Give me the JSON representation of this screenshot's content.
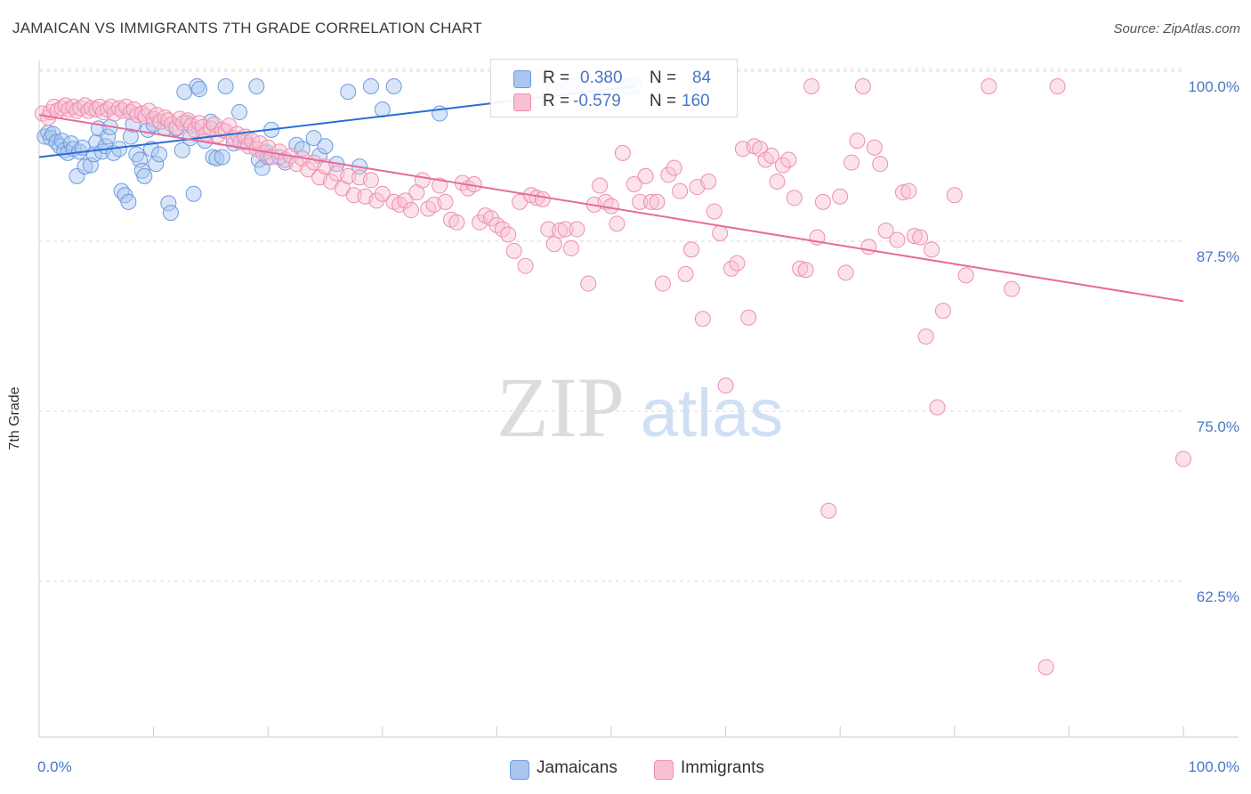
{
  "header": {
    "title": "JAMAICAN VS IMMIGRANTS 7TH GRADE CORRELATION CHART",
    "source": "Source: ZipAtlas.com"
  },
  "watermark": {
    "zip": "ZIP",
    "atlas": "atlas"
  },
  "legend": {
    "rows": [
      {
        "r_label": "R =",
        "r_value": "0.380",
        "n_label": "N =",
        "n_value": "84",
        "color": "#a9c5f0",
        "border": "#6d9be0"
      },
      {
        "r_label": "R =",
        "r_value": "-0.579",
        "n_label": "N =",
        "n_value": "160",
        "color": "#f9c0d3",
        "border": "#ec8fae"
      }
    ]
  },
  "bottom_legend": [
    {
      "label": "Jamaicans",
      "color": "#a9c5f0",
      "border": "#6d9be0"
    },
    {
      "label": "Immigrants",
      "color": "#f9c0d3",
      "border": "#ec8fae"
    }
  ],
  "colors": {
    "blue_line": "#2b6dd6",
    "pink_line": "#e86b97",
    "axis_text": "#4a77c7",
    "grid": "#d9d9d9"
  },
  "chart_data": {
    "type": "scatter",
    "title": "JAMAICAN VS IMMIGRANTS 7TH GRADE CORRELATION CHART",
    "xlabel": "",
    "ylabel": "7th Grade",
    "xlim": [
      0,
      100
    ],
    "ylim": [
      51,
      101.5
    ],
    "x_tick_labels": [
      "0.0%",
      "100.0%"
    ],
    "y_ticks": [
      62.5,
      75.0,
      87.5,
      100.0
    ],
    "y_tick_labels": [
      "62.5%",
      "75.0%",
      "87.5%",
      "100.0%"
    ],
    "grid": true,
    "legend_position": "top-center",
    "series": [
      {
        "name": "Jamaicans",
        "color": "#6d9be0",
        "trend": {
          "x": [
            0,
            52
          ],
          "y": [
            94.8,
            100.0
          ]
        },
        "points": [
          [
            0.5,
            96.3
          ],
          [
            0.8,
            96.6
          ],
          [
            1.0,
            96.2
          ],
          [
            1.2,
            96.5
          ],
          [
            1.5,
            95.9
          ],
          [
            1.8,
            95.6
          ],
          [
            2.0,
            96.0
          ],
          [
            2.2,
            95.3
          ],
          [
            2.5,
            95.1
          ],
          [
            2.8,
            95.8
          ],
          [
            3.0,
            95.4
          ],
          [
            3.3,
            93.4
          ],
          [
            3.5,
            95.2
          ],
          [
            3.8,
            95.5
          ],
          [
            4.0,
            94.1
          ],
          [
            4.5,
            94.2
          ],
          [
            4.8,
            95.0
          ],
          [
            5.0,
            95.9
          ],
          [
            5.2,
            96.9
          ],
          [
            5.5,
            95.2
          ],
          [
            5.8,
            95.6
          ],
          [
            6.0,
            96.3
          ],
          [
            6.2,
            97.0
          ],
          [
            6.5,
            95.1
          ],
          [
            7.0,
            95.4
          ],
          [
            7.2,
            92.3
          ],
          [
            7.5,
            92.0
          ],
          [
            7.8,
            91.5
          ],
          [
            8.0,
            96.3
          ],
          [
            8.2,
            97.2
          ],
          [
            8.5,
            95.0
          ],
          [
            8.8,
            94.6
          ],
          [
            9.0,
            93.8
          ],
          [
            9.2,
            93.4
          ],
          [
            9.5,
            96.8
          ],
          [
            9.8,
            95.4
          ],
          [
            10.0,
            97.2
          ],
          [
            10.2,
            94.3
          ],
          [
            10.5,
            95.0
          ],
          [
            11.0,
            96.9
          ],
          [
            11.3,
            91.4
          ],
          [
            11.5,
            90.7
          ],
          [
            12.0,
            96.9
          ],
          [
            12.5,
            95.3
          ],
          [
            12.7,
            99.6
          ],
          [
            13.0,
            97.3
          ],
          [
            13.2,
            96.2
          ],
          [
            13.5,
            92.1
          ],
          [
            13.8,
            100.0
          ],
          [
            14.0,
            99.8
          ],
          [
            14.5,
            96.0
          ],
          [
            15.0,
            97.4
          ],
          [
            15.2,
            94.8
          ],
          [
            15.5,
            94.7
          ],
          [
            16.0,
            94.8
          ],
          [
            16.3,
            100.0
          ],
          [
            17.0,
            95.8
          ],
          [
            17.5,
            98.1
          ],
          [
            18.0,
            95.9
          ],
          [
            19.0,
            100.0
          ],
          [
            19.2,
            94.6
          ],
          [
            19.5,
            94.0
          ],
          [
            19.8,
            95.2
          ],
          [
            20.0,
            94.8
          ],
          [
            20.3,
            96.8
          ],
          [
            21.0,
            94.8
          ],
          [
            21.5,
            94.4
          ],
          [
            22.5,
            95.7
          ],
          [
            23.0,
            95.4
          ],
          [
            24.0,
            96.2
          ],
          [
            24.5,
            94.9
          ],
          [
            25.0,
            95.6
          ],
          [
            26.0,
            94.3
          ],
          [
            27.0,
            99.6
          ],
          [
            28.0,
            94.1
          ],
          [
            29.0,
            100.0
          ],
          [
            30.0,
            98.3
          ],
          [
            31.0,
            100.0
          ],
          [
            35.0,
            98.0
          ],
          [
            45.0,
            99.8
          ],
          [
            46.5,
            100.0
          ],
          [
            49.0,
            99.0
          ],
          [
            51.5,
            100.0
          ],
          [
            52.0,
            100.0
          ]
        ]
      },
      {
        "name": "Immigrants",
        "color": "#ec8fae",
        "trend": {
          "x": [
            0,
            100
          ],
          "y": [
            97.9,
            84.2
          ]
        },
        "points": [
          [
            0.3,
            98.0
          ],
          [
            0.8,
            97.7
          ],
          [
            1.0,
            98.1
          ],
          [
            1.3,
            98.5
          ],
          [
            1.6,
            98.2
          ],
          [
            2.0,
            98.4
          ],
          [
            2.3,
            98.6
          ],
          [
            2.6,
            98.3
          ],
          [
            3.0,
            98.5
          ],
          [
            3.3,
            98.2
          ],
          [
            3.6,
            98.4
          ],
          [
            4.0,
            98.6
          ],
          [
            4.3,
            98.2
          ],
          [
            4.6,
            98.4
          ],
          [
            5.0,
            98.3
          ],
          [
            5.3,
            98.5
          ],
          [
            5.6,
            98.1
          ],
          [
            6.0,
            98.3
          ],
          [
            6.3,
            98.5
          ],
          [
            6.6,
            98.0
          ],
          [
            7.0,
            98.4
          ],
          [
            7.3,
            98.2
          ],
          [
            7.6,
            98.5
          ],
          [
            8.0,
            98.1
          ],
          [
            8.3,
            98.3
          ],
          [
            8.6,
            97.9
          ],
          [
            9.0,
            98.0
          ],
          [
            9.3,
            97.8
          ],
          [
            9.6,
            98.2
          ],
          [
            10.0,
            97.6
          ],
          [
            10.3,
            97.9
          ],
          [
            10.6,
            97.4
          ],
          [
            11.0,
            97.7
          ],
          [
            11.3,
            97.5
          ],
          [
            11.6,
            97.2
          ],
          [
            12.0,
            97.0
          ],
          [
            12.3,
            97.6
          ],
          [
            12.6,
            97.3
          ],
          [
            13.0,
            97.5
          ],
          [
            13.3,
            97.1
          ],
          [
            13.6,
            96.8
          ],
          [
            14.0,
            97.3
          ],
          [
            14.3,
            97.0
          ],
          [
            14.6,
            96.5
          ],
          [
            15.0,
            96.9
          ],
          [
            15.3,
            97.2
          ],
          [
            15.6,
            96.4
          ],
          [
            16.0,
            96.8
          ],
          [
            16.3,
            96.7
          ],
          [
            16.6,
            97.1
          ],
          [
            17.0,
            96.2
          ],
          [
            17.3,
            96.5
          ],
          [
            17.6,
            95.9
          ],
          [
            18.0,
            96.3
          ],
          [
            18.3,
            95.6
          ],
          [
            18.6,
            96.0
          ],
          [
            19.0,
            95.4
          ],
          [
            19.3,
            95.8
          ],
          [
            19.6,
            95.1
          ],
          [
            20.0,
            95.5
          ],
          [
            20.3,
            94.8
          ],
          [
            21.0,
            95.2
          ],
          [
            21.5,
            94.6
          ],
          [
            22.0,
            94.9
          ],
          [
            22.5,
            94.3
          ],
          [
            23.0,
            94.7
          ],
          [
            23.5,
            93.9
          ],
          [
            24.0,
            94.4
          ],
          [
            24.5,
            93.3
          ],
          [
            25.0,
            94.1
          ],
          [
            25.5,
            93.0
          ],
          [
            26.0,
            93.6
          ],
          [
            26.5,
            92.5
          ],
          [
            27.0,
            93.4
          ],
          [
            27.5,
            92.0
          ],
          [
            28.0,
            93.3
          ],
          [
            28.5,
            91.9
          ],
          [
            29.0,
            93.1
          ],
          [
            29.5,
            91.6
          ],
          [
            30.0,
            92.1
          ],
          [
            31.0,
            91.5
          ],
          [
            31.5,
            91.3
          ],
          [
            32.0,
            91.6
          ],
          [
            32.5,
            90.9
          ],
          [
            33.0,
            92.2
          ],
          [
            33.5,
            93.1
          ],
          [
            34.0,
            91.0
          ],
          [
            34.5,
            91.3
          ],
          [
            35.0,
            92.7
          ],
          [
            35.5,
            91.5
          ],
          [
            36.0,
            90.2
          ],
          [
            36.5,
            90.0
          ],
          [
            37.0,
            92.9
          ],
          [
            37.5,
            92.5
          ],
          [
            38.0,
            92.8
          ],
          [
            38.5,
            90.0
          ],
          [
            39.0,
            90.5
          ],
          [
            39.5,
            90.3
          ],
          [
            40.0,
            89.8
          ],
          [
            40.5,
            89.5
          ],
          [
            41.0,
            89.1
          ],
          [
            41.5,
            87.9
          ],
          [
            42.0,
            91.5
          ],
          [
            42.5,
            86.8
          ],
          [
            43.0,
            92.0
          ],
          [
            43.5,
            91.8
          ],
          [
            44.0,
            91.7
          ],
          [
            44.5,
            89.5
          ],
          [
            45.0,
            88.4
          ],
          [
            45.5,
            89.4
          ],
          [
            46.0,
            89.5
          ],
          [
            46.5,
            88.1
          ],
          [
            47.0,
            89.5
          ],
          [
            48.0,
            85.5
          ],
          [
            48.5,
            91.3
          ],
          [
            49.0,
            92.7
          ],
          [
            49.5,
            91.5
          ],
          [
            50.0,
            91.2
          ],
          [
            50.5,
            89.9
          ],
          [
            51.0,
            95.1
          ],
          [
            52.0,
            92.8
          ],
          [
            52.5,
            91.5
          ],
          [
            53.0,
            93.4
          ],
          [
            53.5,
            91.5
          ],
          [
            54.0,
            91.5
          ],
          [
            54.5,
            85.5
          ],
          [
            55.0,
            93.5
          ],
          [
            55.5,
            94.0
          ],
          [
            56.0,
            92.3
          ],
          [
            56.5,
            86.2
          ],
          [
            57.0,
            88.0
          ],
          [
            57.5,
            92.6
          ],
          [
            58.0,
            82.9
          ],
          [
            58.5,
            93.0
          ],
          [
            59.0,
            90.8
          ],
          [
            59.5,
            89.2
          ],
          [
            60.0,
            78.0
          ],
          [
            60.5,
            86.6
          ],
          [
            61.0,
            87.0
          ],
          [
            61.5,
            95.4
          ],
          [
            62.0,
            83.0
          ],
          [
            62.5,
            95.6
          ],
          [
            63.0,
            95.4
          ],
          [
            63.5,
            94.6
          ],
          [
            64.0,
            94.9
          ],
          [
            64.5,
            93.0
          ],
          [
            65.0,
            94.2
          ],
          [
            65.5,
            94.6
          ],
          [
            66.0,
            91.8
          ],
          [
            66.5,
            86.6
          ],
          [
            67.0,
            86.5
          ],
          [
            67.5,
            100.0
          ],
          [
            68.0,
            88.9
          ],
          [
            68.5,
            91.5
          ],
          [
            69.0,
            68.8
          ],
          [
            70.0,
            91.9
          ],
          [
            70.5,
            86.3
          ],
          [
            71.0,
            94.4
          ],
          [
            71.5,
            96.0
          ],
          [
            72.0,
            100.0
          ],
          [
            72.5,
            88.2
          ],
          [
            73.0,
            95.5
          ],
          [
            73.5,
            94.3
          ],
          [
            74.0,
            89.4
          ],
          [
            75.0,
            88.7
          ],
          [
            75.5,
            92.2
          ],
          [
            76.0,
            92.3
          ],
          [
            76.5,
            89.0
          ],
          [
            77.0,
            88.9
          ],
          [
            77.5,
            81.6
          ],
          [
            78.0,
            88.0
          ],
          [
            78.5,
            76.4
          ],
          [
            79.0,
            83.5
          ],
          [
            80.0,
            92.0
          ],
          [
            81.0,
            86.1
          ],
          [
            83.0,
            100.0
          ],
          [
            85.0,
            85.1
          ],
          [
            88.0,
            57.3
          ],
          [
            89.0,
            100.0
          ],
          [
            100.0,
            72.6
          ]
        ]
      }
    ]
  }
}
